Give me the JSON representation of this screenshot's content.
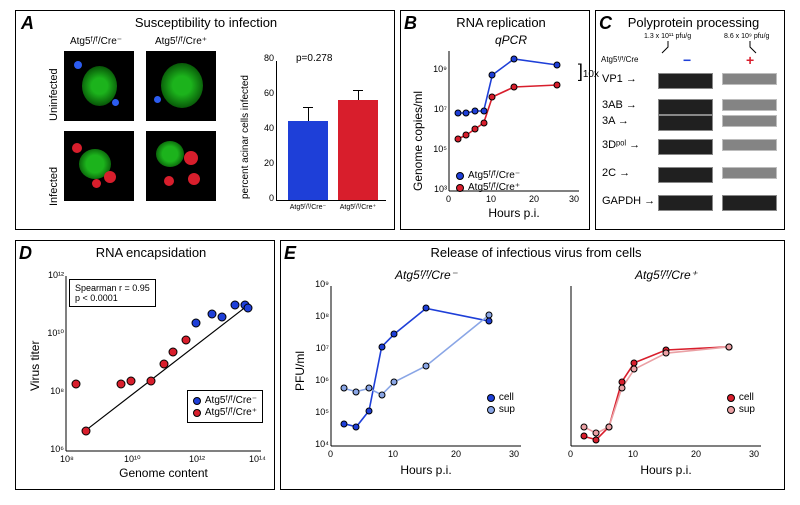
{
  "colors": {
    "blue": "#1e3fd8",
    "red": "#d81e2c",
    "light_blue": "#8aa6e6",
    "light_red": "#eaa0a4",
    "green": "#1cb31c",
    "black": "#000000",
    "grid": "#e0e0e0",
    "bg": "#ffffff"
  },
  "panelA": {
    "label": "A",
    "title": "Susceptibility to infection",
    "col_headers": [
      "Atg5ᶠ/ᶠ/Cre⁻",
      "Atg5ᶠ/ᶠ/Cre⁺"
    ],
    "row_headers": [
      "Uninfected",
      "Infected"
    ],
    "bar": {
      "ylabel": "percent acinar cells infected",
      "ylim": [
        0,
        80
      ],
      "ytick_step": 20,
      "categories": [
        "Atg5ᶠ/ᶠ/Cre⁻",
        "Atg5ᶠ/ᶠ/Cre⁺"
      ],
      "values": [
        45,
        57
      ],
      "errors": [
        8,
        6
      ],
      "colors": [
        "#1e3fd8",
        "#d81e2c"
      ],
      "pvalue": "p=0.278"
    }
  },
  "panelB": {
    "label": "B",
    "title": "RNA replication",
    "subtitle": "qPCR",
    "ylabel": "Genome copies/ml",
    "xlabel": "Hours p.i.",
    "ylim_exp": [
      3,
      10
    ],
    "xlim": [
      0,
      30
    ],
    "bracket": "10x",
    "series": [
      {
        "name": "Atg5ᶠ/ᶠ/Cre⁻",
        "color": "#1e3fd8",
        "x": [
          2,
          4,
          6,
          8,
          10,
          15,
          25
        ],
        "y_exp": [
          6.9,
          6.9,
          7.0,
          7.0,
          8.8,
          9.6,
          9.3
        ]
      },
      {
        "name": "Atg5ᶠ/ᶠ/Cre⁺",
        "color": "#d81e2c",
        "x": [
          2,
          4,
          6,
          8,
          10,
          15,
          25
        ],
        "y_exp": [
          5.6,
          5.8,
          6.1,
          6.4,
          7.7,
          8.2,
          8.3
        ]
      }
    ]
  },
  "panelC": {
    "label": "C",
    "title": "Polyprotein processing",
    "header_left": "1.3 x 10¹¹ pfu/g",
    "header_right": "8.6 x 10⁹ pfu/g",
    "lane_header": "Atg5ᶠ/ᶠ/Cre",
    "lanes": [
      "−",
      "+"
    ],
    "lane_colors": [
      "#1e3fd8",
      "#d81e2c"
    ],
    "rows": [
      "VP1",
      "3AB",
      "3A",
      "3Dᵖᵒˡ",
      "2C",
      "GAPDH"
    ]
  },
  "panelD": {
    "label": "D",
    "title": "RNA encapsidation",
    "ylabel": "Virus titer",
    "xlabel": "Genome content",
    "xlim_exp": [
      8,
      14
    ],
    "ylim_exp": [
      6,
      12
    ],
    "stat_box": "Spearman r = 0.95\np < 0.0001",
    "legend": [
      {
        "label": "Atg5ᶠ/ᶠ/Cre⁻",
        "color": "#1e3fd8"
      },
      {
        "label": "Atg5ᶠ/ᶠ/Cre⁺",
        "color": "#d81e2c"
      }
    ],
    "points": [
      {
        "x_exp": 8.3,
        "y_exp": 8.3,
        "color": "#d81e2c"
      },
      {
        "x_exp": 8.6,
        "y_exp": 6.7,
        "color": "#d81e2c"
      },
      {
        "x_exp": 9.7,
        "y_exp": 8.3,
        "color": "#d81e2c"
      },
      {
        "x_exp": 10.0,
        "y_exp": 8.4,
        "color": "#d81e2c"
      },
      {
        "x_exp": 10.6,
        "y_exp": 8.4,
        "color": "#d81e2c"
      },
      {
        "x_exp": 11.0,
        "y_exp": 9.0,
        "color": "#d81e2c"
      },
      {
        "x_exp": 11.3,
        "y_exp": 9.4,
        "color": "#d81e2c"
      },
      {
        "x_exp": 11.7,
        "y_exp": 9.8,
        "color": "#d81e2c"
      },
      {
        "x_exp": 12.0,
        "y_exp": 10.4,
        "color": "#1e3fd8"
      },
      {
        "x_exp": 12.5,
        "y_exp": 10.7,
        "color": "#1e3fd8"
      },
      {
        "x_exp": 12.8,
        "y_exp": 10.6,
        "color": "#1e3fd8"
      },
      {
        "x_exp": 13.2,
        "y_exp": 11.0,
        "color": "#1e3fd8"
      },
      {
        "x_exp": 13.5,
        "y_exp": 11.0,
        "color": "#1e3fd8"
      },
      {
        "x_exp": 13.6,
        "y_exp": 10.9,
        "color": "#1e3fd8"
      }
    ],
    "fit": {
      "x1_exp": 8.6,
      "y1_exp": 6.7,
      "x2_exp": 13.6,
      "y2_exp": 11.0
    }
  },
  "panelE": {
    "label": "E",
    "title": "Release of infectious virus from cells",
    "ylabel": "PFU/ml",
    "xlabel": "Hours p.i.",
    "ylim_exp": [
      4,
      9
    ],
    "xlim": [
      0,
      30
    ],
    "subplots": [
      {
        "subtitle": "Atg5ᶠ/ᶠ/Cre⁻",
        "series": [
          {
            "name": "cell",
            "color": "#1e3fd8",
            "x": [
              2,
              4,
              6,
              8,
              10,
              15,
              25
            ],
            "y_exp": [
              4.7,
              4.6,
              5.1,
              7.1,
              7.5,
              8.3,
              7.9
            ]
          },
          {
            "name": "sup",
            "color": "#8aa6e6",
            "x": [
              2,
              4,
              6,
              8,
              10,
              15,
              25
            ],
            "y_exp": [
              5.8,
              5.7,
              5.8,
              5.6,
              6.0,
              6.5,
              8.1
            ]
          }
        ]
      },
      {
        "subtitle": "Atg5ᶠ/ᶠ/Cre⁺",
        "series": [
          {
            "name": "cell",
            "color": "#d81e2c",
            "x": [
              2,
              4,
              6,
              8,
              10,
              15,
              25
            ],
            "y_exp": [
              4.3,
              4.2,
              4.6,
              6.0,
              6.6,
              7.0,
              7.1
            ]
          },
          {
            "name": "sup",
            "color": "#eaa0a4",
            "x": [
              2,
              4,
              6,
              8,
              10,
              15,
              25
            ],
            "y_exp": [
              4.6,
              4.4,
              4.6,
              5.8,
              6.4,
              6.9,
              7.1
            ]
          }
        ]
      }
    ]
  }
}
